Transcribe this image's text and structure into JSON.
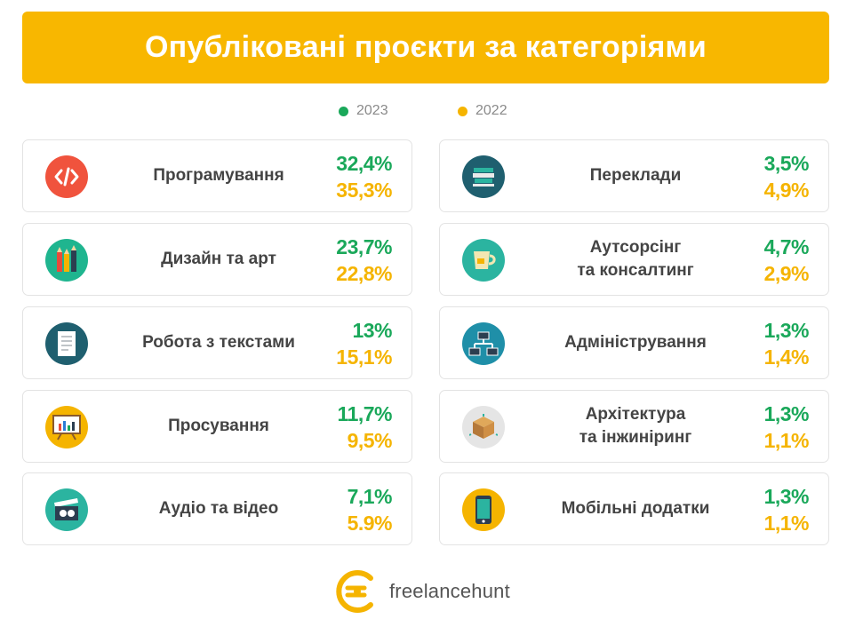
{
  "title": "Опубліковані проєкти за категоріями",
  "legend": {
    "y2023": {
      "label": "2023",
      "color": "#1aa85a"
    },
    "y2022": {
      "label": "2022",
      "color": "#f5b400"
    }
  },
  "categories": [
    {
      "label": "Програмування",
      "v2023": "32,4%",
      "v2022": "35,3%",
      "icon": "code-icon"
    },
    {
      "label": "Переклади",
      "v2023": "3,5%",
      "v2022": "4,9%",
      "icon": "books-icon"
    },
    {
      "label": "Дизайн та арт",
      "v2023": "23,7%",
      "v2022": "22,8%",
      "icon": "pencils-icon"
    },
    {
      "label": "Аутсорсінг\nта консалтинг",
      "v2023": "4,7%",
      "v2022": "2,9%",
      "icon": "cup-icon"
    },
    {
      "label": "Робота з текстами",
      "v2023": "13%",
      "v2022": "15,1%",
      "icon": "document-icon"
    },
    {
      "label": "Адміністрування",
      "v2023": "1,3%",
      "v2022": "1,4%",
      "icon": "network-icon"
    },
    {
      "label": "Просування",
      "v2023": "11,7%",
      "v2022": "9,5%",
      "icon": "presentation-board-icon"
    },
    {
      "label": "Архітектура\nта інжиніринг",
      "v2023": "1,3%",
      "v2022": "1,1%",
      "icon": "cube-icon"
    },
    {
      "label": "Аудіо та відео",
      "v2023": "7,1%",
      "v2022": "5.9%",
      "icon": "clapperboard-icon"
    },
    {
      "label": "Мобільні додатки",
      "v2023": "1,3%",
      "v2022": "1,1%",
      "icon": "smartphone-icon"
    }
  ],
  "brand": {
    "name": "freelancehunt",
    "color": "#f5b400",
    "icon": "freelancehunt-logo-icon"
  },
  "colors": {
    "banner": "#f8b700"
  }
}
